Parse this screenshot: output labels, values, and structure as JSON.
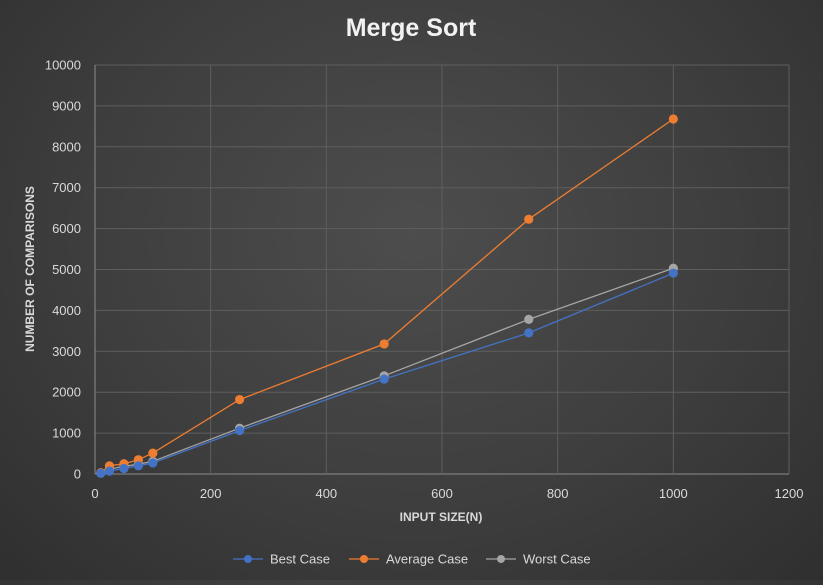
{
  "chart_data": {
    "type": "scatter",
    "title": "Merge Sort",
    "xlabel": "INPUT SIZE(N)",
    "ylabel": "NUMBER OF COMPARISONS",
    "xlim": [
      0,
      1200
    ],
    "ylim": [
      0,
      10000
    ],
    "x_ticks": [
      "0",
      "200",
      "400",
      "600",
      "800",
      "1000",
      "1200"
    ],
    "y_ticks": [
      "0",
      "1000",
      "2000",
      "3000",
      "4000",
      "5000",
      "6000",
      "7000",
      "8000",
      "9000",
      "10000"
    ],
    "grid": true,
    "legend_position": "bottom",
    "series": [
      {
        "name": "Best Case",
        "color": "#4472c4",
        "points": [
          [
            10,
            15
          ],
          [
            25,
            70
          ],
          [
            50,
            135
          ],
          [
            75,
            200
          ],
          [
            100,
            270
          ],
          [
            250,
            1060
          ],
          [
            500,
            2320
          ],
          [
            750,
            3450
          ],
          [
            1000,
            4910
          ]
        ]
      },
      {
        "name": "Average Case",
        "color": "#ed7d31",
        "points": [
          [
            10,
            30
          ],
          [
            25,
            200
          ],
          [
            50,
            250
          ],
          [
            75,
            350
          ],
          [
            100,
            510
          ],
          [
            250,
            1820
          ],
          [
            500,
            3180
          ],
          [
            750,
            6230
          ],
          [
            1000,
            8680
          ]
        ]
      },
      {
        "name": "Worst Case",
        "color": "#a5a5a5",
        "points": [
          [
            10,
            25
          ],
          [
            25,
            120
          ],
          [
            50,
            185
          ],
          [
            75,
            240
          ],
          [
            100,
            310
          ],
          [
            250,
            1120
          ],
          [
            500,
            2400
          ],
          [
            750,
            3780
          ],
          [
            1000,
            5030
          ]
        ]
      }
    ]
  }
}
